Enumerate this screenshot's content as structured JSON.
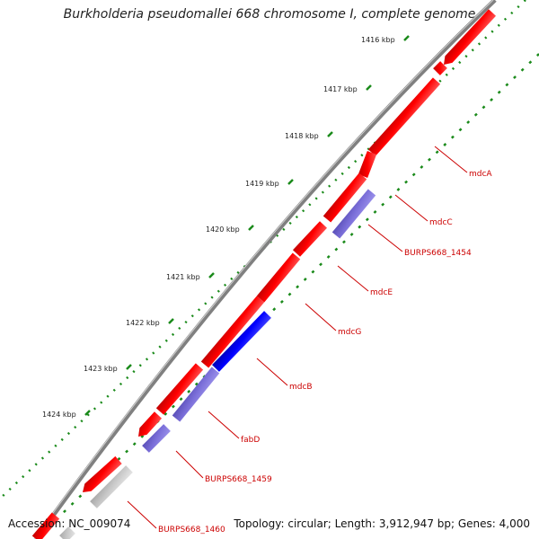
{
  "title": "Burkholderia pseudomallei 668 chromosome I, complete genome",
  "footer": {
    "accession": "Accession: NC_009074",
    "summary": "Topology: circular; Length: 3,912,947 bp; Genes: 4,000"
  },
  "ticks": [
    "1416 kbp",
    "1417 kbp",
    "1418 kbp",
    "1419 kbp",
    "1420 kbp",
    "1421 kbp",
    "1422 kbp",
    "1423 kbp",
    "1424 kbp"
  ],
  "genes": [
    "mdcA",
    "mdcC",
    "BURPS668_1454",
    "mdcE",
    "mdcG",
    "mdcB",
    "fabD",
    "BURPS668_1459",
    "BURPS668_1460"
  ],
  "colors": {
    "backbone": "#808080",
    "forward_gene": "#ff0000",
    "reverse_gene": "#0000ff",
    "reverse_gene_light": "#7b6fd9",
    "pseudo_gene": "#c8c8c8",
    "tick_dots": "#1a8a1a",
    "label": "#cc0000"
  }
}
